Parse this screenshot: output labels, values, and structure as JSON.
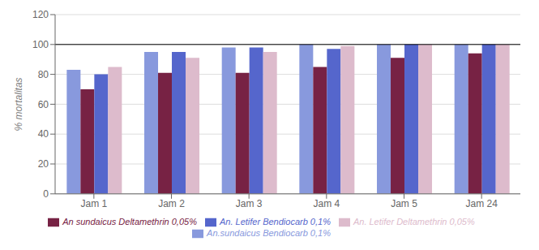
{
  "chart_data": {
    "type": "bar",
    "categories": [
      "Jam 1",
      "Jam 2",
      "Jam 3",
      "Jam 4",
      "Jam 5",
      "Jam 24"
    ],
    "series": [
      {
        "name": "An.sundaicus Bendiocarb 0,1%",
        "color": "#8899dd",
        "values": [
          83,
          95,
          98,
          100,
          100,
          100
        ]
      },
      {
        "name": "An sundaicus Deltamethrin 0,05%",
        "color": "#772244",
        "values": [
          70,
          81,
          81,
          85,
          91,
          94
        ]
      },
      {
        "name": "An. Letifer Bendiocarb 0,1%",
        "color": "#5566cc",
        "values": [
          80,
          95,
          98,
          97,
          100,
          100
        ]
      },
      {
        "name": "An. Letifer Deltamethrin 0,05%",
        "color": "#ddbbcc",
        "values": [
          85,
          91,
          95,
          99,
          100,
          100
        ]
      }
    ],
    "ylabel": "% mortalitas",
    "ylim": [
      0,
      120
    ],
    "yticks": [
      0,
      20,
      40,
      60,
      80,
      100,
      120
    ],
    "hline": 100,
    "grid": true,
    "legend": "bottom"
  }
}
